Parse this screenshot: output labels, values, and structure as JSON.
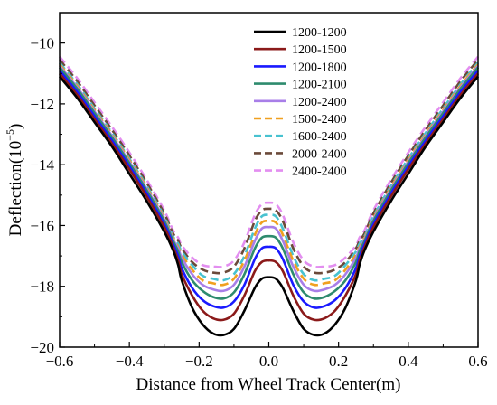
{
  "chart_data": {
    "type": "line",
    "xlabel": "Distance from Wheel Track Center(m)",
    "ylabel": "Deflection(10",
    "ylabel_exponent": "−5",
    "ylabel_close": ")",
    "xlim": [
      -0.6,
      0.6
    ],
    "ylim": [
      -20,
      -9
    ],
    "x_ticks": [
      -0.6,
      -0.4,
      -0.2,
      0.0,
      0.2,
      0.4,
      0.6
    ],
    "x_tick_labels": [
      "−0.6",
      "−0.4",
      "−0.2",
      "0.0",
      "0.2",
      "0.4",
      "0.6"
    ],
    "y_ticks": [
      -20,
      -18,
      -16,
      -14,
      -12,
      -10
    ],
    "y_tick_labels": [
      "−20",
      "−18",
      "−16",
      "−14",
      "−12",
      "−10"
    ],
    "legend_position": "top-right",
    "series": [
      {
        "name": "1200-1200",
        "color": "#000000",
        "dash": "solid",
        "x": [
          -0.6,
          -0.55,
          -0.5,
          -0.45,
          -0.4,
          -0.35,
          -0.3,
          -0.275,
          -0.26,
          -0.25,
          -0.22,
          -0.19,
          -0.16,
          -0.13,
          -0.1,
          -0.07,
          -0.04,
          -0.02,
          0.0,
          0.02,
          0.04,
          0.07,
          0.1,
          0.13,
          0.16,
          0.19,
          0.22,
          0.25,
          0.26,
          0.275,
          0.3,
          0.35,
          0.4,
          0.45,
          0.5,
          0.55,
          0.6
        ],
        "y": [
          -11.1,
          -11.8,
          -12.6,
          -13.4,
          -14.3,
          -15.2,
          -16.2,
          -16.8,
          -17.3,
          -17.8,
          -18.7,
          -19.25,
          -19.55,
          -19.6,
          -19.4,
          -18.8,
          -18.05,
          -17.75,
          -17.7,
          -17.75,
          -18.05,
          -18.8,
          -19.4,
          -19.6,
          -19.55,
          -19.25,
          -18.7,
          -17.8,
          -17.3,
          -16.8,
          -16.2,
          -15.2,
          -14.3,
          -13.4,
          -12.6,
          -11.8,
          -11.1
        ]
      },
      {
        "name": "1200-1500",
        "color": "#8b1a1a",
        "dash": "solid",
        "x": [
          -0.6,
          -0.55,
          -0.5,
          -0.45,
          -0.4,
          -0.35,
          -0.3,
          -0.275,
          -0.26,
          -0.25,
          -0.22,
          -0.19,
          -0.16,
          -0.13,
          -0.1,
          -0.07,
          -0.04,
          -0.02,
          0.0,
          0.02,
          0.04,
          0.07,
          0.1,
          0.13,
          0.16,
          0.19,
          0.22,
          0.25,
          0.26,
          0.275,
          0.3,
          0.35,
          0.4,
          0.45,
          0.5,
          0.55,
          0.6
        ],
        "y": [
          -11.0,
          -11.7,
          -12.5,
          -13.3,
          -14.15,
          -15.05,
          -16.05,
          -16.7,
          -17.15,
          -17.6,
          -18.3,
          -18.8,
          -19.05,
          -19.1,
          -18.9,
          -18.3,
          -17.5,
          -17.2,
          -17.15,
          -17.2,
          -17.5,
          -18.3,
          -18.9,
          -19.1,
          -19.05,
          -18.8,
          -18.3,
          -17.6,
          -17.15,
          -16.7,
          -16.05,
          -15.05,
          -14.15,
          -13.3,
          -12.5,
          -11.7,
          -11.0
        ]
      },
      {
        "name": "1200-1800",
        "color": "#1a1aff",
        "dash": "solid",
        "x": [
          -0.6,
          -0.55,
          -0.5,
          -0.45,
          -0.4,
          -0.35,
          -0.3,
          -0.275,
          -0.26,
          -0.25,
          -0.22,
          -0.19,
          -0.16,
          -0.13,
          -0.1,
          -0.07,
          -0.04,
          -0.02,
          0.0,
          0.02,
          0.04,
          0.07,
          0.1,
          0.13,
          0.16,
          0.19,
          0.22,
          0.25,
          0.26,
          0.275,
          0.3,
          0.35,
          0.4,
          0.45,
          0.5,
          0.55,
          0.6
        ],
        "y": [
          -10.9,
          -11.6,
          -12.4,
          -13.2,
          -14.05,
          -14.95,
          -15.95,
          -16.6,
          -17.0,
          -17.4,
          -18.05,
          -18.45,
          -18.65,
          -18.7,
          -18.5,
          -17.95,
          -17.1,
          -16.75,
          -16.7,
          -16.75,
          -17.1,
          -17.95,
          -18.5,
          -18.7,
          -18.65,
          -18.45,
          -18.05,
          -17.4,
          -17.0,
          -16.6,
          -15.95,
          -14.95,
          -14.05,
          -13.2,
          -12.4,
          -11.6,
          -10.9
        ]
      },
      {
        "name": "1200-2100",
        "color": "#2e8b6e",
        "dash": "solid",
        "x": [
          -0.6,
          -0.55,
          -0.5,
          -0.45,
          -0.4,
          -0.35,
          -0.3,
          -0.275,
          -0.26,
          -0.25,
          -0.22,
          -0.19,
          -0.16,
          -0.13,
          -0.1,
          -0.07,
          -0.04,
          -0.02,
          0.0,
          0.02,
          0.04,
          0.07,
          0.1,
          0.13,
          0.16,
          0.19,
          0.22,
          0.25,
          0.26,
          0.275,
          0.3,
          0.35,
          0.4,
          0.45,
          0.5,
          0.55,
          0.6
        ],
        "y": [
          -10.8,
          -11.5,
          -12.3,
          -13.1,
          -13.95,
          -14.85,
          -15.85,
          -16.5,
          -16.85,
          -17.2,
          -17.8,
          -18.15,
          -18.35,
          -18.4,
          -18.2,
          -17.6,
          -16.75,
          -16.4,
          -16.35,
          -16.4,
          -16.75,
          -17.6,
          -18.2,
          -18.4,
          -18.35,
          -18.15,
          -17.8,
          -17.2,
          -16.85,
          -16.5,
          -15.85,
          -14.85,
          -13.95,
          -13.1,
          -12.3,
          -11.5,
          -10.8
        ]
      },
      {
        "name": "1200-2400",
        "color": "#a87ee8",
        "dash": "solid",
        "x": [
          -0.6,
          -0.55,
          -0.5,
          -0.45,
          -0.4,
          -0.35,
          -0.3,
          -0.275,
          -0.26,
          -0.25,
          -0.22,
          -0.19,
          -0.16,
          -0.13,
          -0.1,
          -0.07,
          -0.04,
          -0.02,
          0.0,
          0.02,
          0.04,
          0.07,
          0.1,
          0.13,
          0.16,
          0.19,
          0.22,
          0.25,
          0.26,
          0.275,
          0.3,
          0.35,
          0.4,
          0.45,
          0.5,
          0.55,
          0.6
        ],
        "y": [
          -10.75,
          -11.45,
          -12.25,
          -13.05,
          -13.9,
          -14.8,
          -15.8,
          -16.45,
          -16.75,
          -17.05,
          -17.6,
          -17.95,
          -18.1,
          -18.15,
          -17.95,
          -17.35,
          -16.5,
          -16.1,
          -16.05,
          -16.1,
          -16.5,
          -17.35,
          -17.95,
          -18.15,
          -18.1,
          -17.95,
          -17.6,
          -17.05,
          -16.75,
          -16.45,
          -15.8,
          -14.8,
          -13.9,
          -13.05,
          -12.25,
          -11.45,
          -10.75
        ]
      },
      {
        "name": "1500-2400",
        "color": "#f0a020",
        "dash": "dashed",
        "x": [
          -0.6,
          -0.55,
          -0.5,
          -0.45,
          -0.4,
          -0.35,
          -0.3,
          -0.275,
          -0.26,
          -0.25,
          -0.22,
          -0.19,
          -0.16,
          -0.13,
          -0.1,
          -0.07,
          -0.04,
          -0.02,
          0.0,
          0.02,
          0.04,
          0.07,
          0.1,
          0.13,
          0.16,
          0.19,
          0.22,
          0.25,
          0.26,
          0.275,
          0.3,
          0.35,
          0.4,
          0.45,
          0.5,
          0.55,
          0.6
        ],
        "y": [
          -10.7,
          -11.4,
          -12.2,
          -13.0,
          -13.85,
          -14.75,
          -15.75,
          -16.4,
          -16.7,
          -16.95,
          -17.45,
          -17.8,
          -17.9,
          -17.95,
          -17.75,
          -17.15,
          -16.3,
          -15.9,
          -15.85,
          -15.9,
          -16.3,
          -17.15,
          -17.75,
          -17.95,
          -17.9,
          -17.8,
          -17.45,
          -16.95,
          -16.7,
          -16.4,
          -15.75,
          -14.75,
          -13.85,
          -13.0,
          -12.2,
          -11.4,
          -10.7
        ]
      },
      {
        "name": "1600-2400",
        "color": "#48c2d0",
        "dash": "dashed",
        "x": [
          -0.6,
          -0.55,
          -0.5,
          -0.45,
          -0.4,
          -0.35,
          -0.3,
          -0.275,
          -0.26,
          -0.25,
          -0.22,
          -0.19,
          -0.16,
          -0.13,
          -0.1,
          -0.07,
          -0.04,
          -0.02,
          0.0,
          0.02,
          0.04,
          0.07,
          0.1,
          0.13,
          0.16,
          0.19,
          0.22,
          0.25,
          0.26,
          0.275,
          0.3,
          0.35,
          0.4,
          0.45,
          0.5,
          0.55,
          0.6
        ],
        "y": [
          -10.65,
          -11.35,
          -12.15,
          -12.95,
          -13.8,
          -14.7,
          -15.7,
          -16.35,
          -16.6,
          -16.85,
          -17.3,
          -17.65,
          -17.75,
          -17.8,
          -17.6,
          -17.0,
          -16.1,
          -15.7,
          -15.65,
          -15.7,
          -16.1,
          -17.0,
          -17.6,
          -17.8,
          -17.75,
          -17.65,
          -17.3,
          -16.85,
          -16.6,
          -16.35,
          -15.7,
          -14.7,
          -13.8,
          -12.95,
          -12.15,
          -11.35,
          -10.65
        ]
      },
      {
        "name": "2000-2400",
        "color": "#6b4a3a",
        "dash": "dashed",
        "x": [
          -0.6,
          -0.55,
          -0.5,
          -0.45,
          -0.4,
          -0.35,
          -0.3,
          -0.275,
          -0.26,
          -0.25,
          -0.22,
          -0.19,
          -0.16,
          -0.13,
          -0.1,
          -0.07,
          -0.04,
          -0.02,
          0.0,
          0.02,
          0.04,
          0.07,
          0.1,
          0.13,
          0.16,
          0.19,
          0.22,
          0.25,
          0.26,
          0.275,
          0.3,
          0.35,
          0.4,
          0.45,
          0.5,
          0.55,
          0.6
        ],
        "y": [
          -10.55,
          -11.25,
          -12.05,
          -12.85,
          -13.7,
          -14.6,
          -15.6,
          -16.25,
          -16.5,
          -16.75,
          -17.2,
          -17.45,
          -17.55,
          -17.55,
          -17.35,
          -16.75,
          -15.85,
          -15.5,
          -15.45,
          -15.5,
          -15.85,
          -16.75,
          -17.35,
          -17.55,
          -17.55,
          -17.45,
          -17.2,
          -16.75,
          -16.5,
          -16.25,
          -15.6,
          -14.6,
          -13.7,
          -12.85,
          -12.05,
          -11.25,
          -10.55
        ]
      },
      {
        "name": "2400-2400",
        "color": "#e38ef0",
        "dash": "dashed",
        "x": [
          -0.6,
          -0.55,
          -0.5,
          -0.45,
          -0.4,
          -0.35,
          -0.3,
          -0.275,
          -0.26,
          -0.25,
          -0.22,
          -0.19,
          -0.16,
          -0.13,
          -0.1,
          -0.07,
          -0.04,
          -0.02,
          0.0,
          0.02,
          0.04,
          0.07,
          0.1,
          0.13,
          0.16,
          0.19,
          0.22,
          0.25,
          0.26,
          0.275,
          0.3,
          0.35,
          0.4,
          0.45,
          0.5,
          0.55,
          0.6
        ],
        "y": [
          -10.45,
          -11.15,
          -11.95,
          -12.75,
          -13.6,
          -14.5,
          -15.5,
          -16.15,
          -16.4,
          -16.65,
          -17.05,
          -17.3,
          -17.35,
          -17.35,
          -17.15,
          -16.55,
          -15.65,
          -15.3,
          -15.25,
          -15.3,
          -15.65,
          -16.55,
          -17.15,
          -17.35,
          -17.35,
          -17.3,
          -17.05,
          -16.65,
          -16.4,
          -16.15,
          -15.5,
          -14.5,
          -13.6,
          -12.75,
          -11.95,
          -11.15,
          -10.45
        ]
      }
    ]
  }
}
